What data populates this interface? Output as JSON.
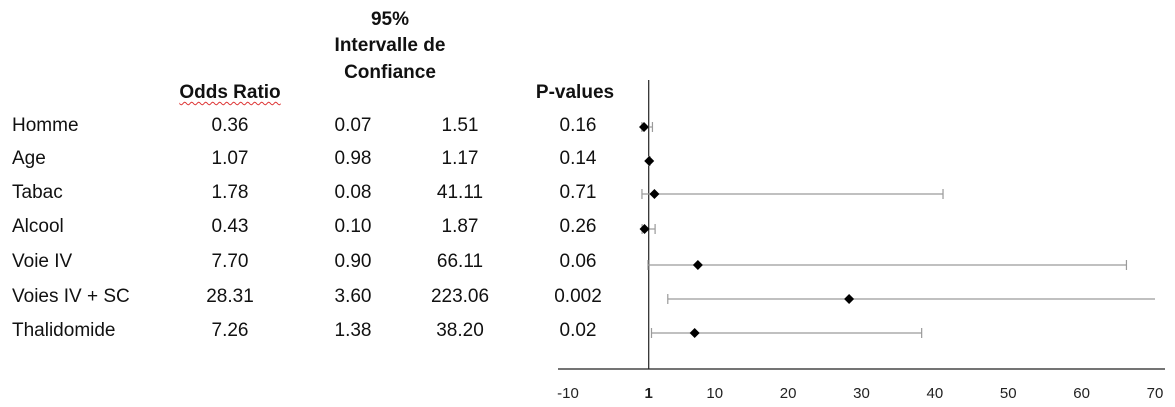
{
  "table": {
    "headers": {
      "odds_ratio": "Odds Ratio",
      "ci_line1": "95%",
      "ci_line2": "Intervalle de",
      "ci_line3": "Confiance",
      "pvalues": "P-values"
    },
    "rows": [
      {
        "label": "Homme",
        "or": "0.36",
        "low": "0.07",
        "high": "1.51",
        "p": "0.16"
      },
      {
        "label": "Age",
        "or": "1.07",
        "low": "0.98",
        "high": "1.17",
        "p": "0.14"
      },
      {
        "label": "Tabac",
        "or": "1.78",
        "low": "0.08",
        "high": "41.11",
        "p": "0.71"
      },
      {
        "label": "Alcool",
        "or": "0.43",
        "low": "0.10",
        "high": "1.87",
        "p": "0.26"
      },
      {
        "label": "Voie IV",
        "or": "7.70",
        "low": "0.90",
        "high": "66.11",
        "p": "0.06"
      },
      {
        "label": "Voies IV + SC",
        "or": "28.31",
        "low": "3.60",
        "high": "223.06",
        "p": "0.002"
      },
      {
        "label": "Thalidomide",
        "or": "7.26",
        "low": "1.38",
        "high": "38.20",
        "p": "0.02"
      }
    ]
  },
  "chart_data": {
    "type": "scatter",
    "subtype": "forest-plot",
    "categories": [
      "Homme",
      "Age",
      "Tabac",
      "Alcool",
      "Voie IV",
      "Voies IV + SC",
      "Thalidomide"
    ],
    "values": [
      0.36,
      1.07,
      1.78,
      0.43,
      7.7,
      28.31,
      7.26
    ],
    "ci_low": [
      0.07,
      0.98,
      0.08,
      0.1,
      0.9,
      3.6,
      1.38
    ],
    "ci_high": [
      1.51,
      1.17,
      41.11,
      1.87,
      66.11,
      223.06,
      38.2
    ],
    "xlim": [
      -10,
      70
    ],
    "xticks": [
      "-10",
      "1",
      "10",
      "20",
      "30",
      "40",
      "50",
      "60",
      "70"
    ],
    "xtick_values": [
      -10,
      1,
      10,
      20,
      30,
      40,
      50,
      60,
      70
    ],
    "reference_line": 1,
    "marker": "diamond",
    "grid": false,
    "title": "",
    "xlabel": "",
    "ylabel": ""
  },
  "colors": {
    "text": "#111111",
    "axis": "#222222",
    "whisker": "#9a9a9a",
    "marker": "#000000"
  }
}
